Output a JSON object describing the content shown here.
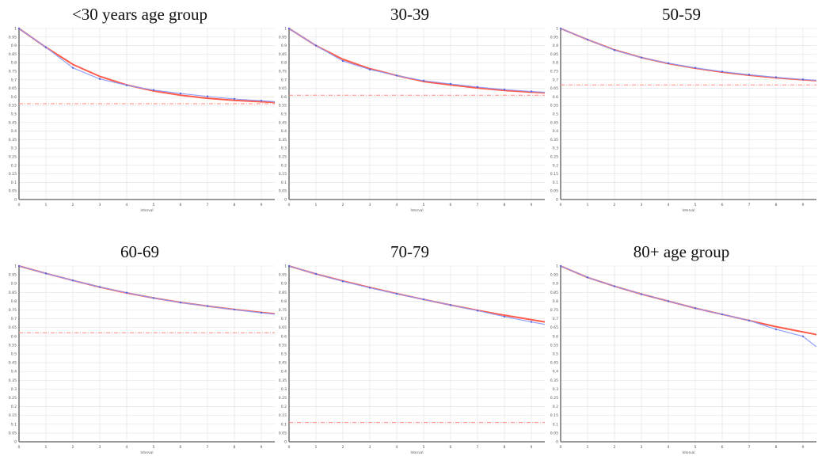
{
  "chart_data": [
    {
      "type": "line",
      "title": "<30 years age group",
      "xlabel": "Interval",
      "ylabel": "",
      "ylim": [
        0,
        1
      ],
      "xlim": [
        0,
        9.5
      ],
      "x": [
        0,
        1,
        2,
        3,
        4,
        5,
        6,
        7,
        8,
        9,
        9.5
      ],
      "x_ticks": [
        "0",
        "1",
        "2",
        "3",
        "4",
        "5",
        "6",
        "7",
        "8",
        "9"
      ],
      "y_ticks": [
        "0",
        "0.05",
        "0.1",
        "0.15",
        "0.2",
        "0.25",
        "0.3",
        "0.35",
        "0.4",
        "0.45",
        "0.5",
        "0.55",
        "0.6",
        "0.65",
        "0.7",
        "0.75",
        "0.8",
        "0.85",
        "0.9",
        "0.95",
        "1"
      ],
      "grid": true,
      "series": [
        {
          "color": "#ff5a4a",
          "values": [
            1.0,
            0.89,
            0.79,
            0.72,
            0.67,
            0.635,
            0.61,
            0.592,
            0.58,
            0.572,
            0.568
          ]
        },
        {
          "color": "#8a9cff",
          "values": [
            1.0,
            0.89,
            0.77,
            0.705,
            0.668,
            0.64,
            0.62,
            0.603,
            0.588,
            0.578,
            0.572
          ]
        }
      ],
      "reference_line": {
        "color": "#ff8a80",
        "value": 0.56
      }
    },
    {
      "type": "line",
      "title": "30-39",
      "xlabel": "Interval",
      "ylabel": "",
      "ylim": [
        0,
        1
      ],
      "xlim": [
        0,
        9.5
      ],
      "x": [
        0,
        1,
        2,
        3,
        4,
        5,
        6,
        7,
        8,
        9,
        9.5
      ],
      "x_ticks": [
        "0",
        "1",
        "2",
        "3",
        "4",
        "5",
        "6",
        "7",
        "8",
        "9"
      ],
      "y_ticks": [
        "0",
        "0.05",
        "0.1",
        "0.15",
        "0.2",
        "0.25",
        "0.3",
        "0.35",
        "0.4",
        "0.45",
        "0.5",
        "0.55",
        "0.6",
        "0.65",
        "0.7",
        "0.75",
        "0.8",
        "0.85",
        "0.9",
        "0.95",
        "1"
      ],
      "grid": true,
      "series": [
        {
          "color": "#ff5a4a",
          "values": [
            1.0,
            0.9,
            0.82,
            0.765,
            0.725,
            0.69,
            0.67,
            0.652,
            0.638,
            0.628,
            0.624
          ]
        },
        {
          "color": "#8a9cff",
          "values": [
            1.0,
            0.9,
            0.81,
            0.76,
            0.725,
            0.695,
            0.676,
            0.658,
            0.643,
            0.632,
            0.627
          ]
        }
      ],
      "reference_line": {
        "color": "#ff8a80",
        "value": 0.61
      }
    },
    {
      "type": "line",
      "title": "50-59",
      "xlabel": "Interval",
      "ylabel": "",
      "ylim": [
        0,
        1
      ],
      "xlim": [
        0,
        9.5
      ],
      "x": [
        0,
        1,
        2,
        3,
        4,
        5,
        6,
        7,
        8,
        9,
        9.5
      ],
      "x_ticks": [
        "0",
        "1",
        "2",
        "3",
        "4",
        "5",
        "6",
        "7",
        "8",
        "9"
      ],
      "y_ticks": [
        "0",
        "0.05",
        "0.1",
        "0.15",
        "0.2",
        "0.25",
        "0.3",
        "0.35",
        "0.4",
        "0.45",
        "0.5",
        "0.55",
        "0.6",
        "0.65",
        "0.7",
        "0.75",
        "0.8",
        "0.85",
        "0.9",
        "0.95",
        "1"
      ],
      "grid": true,
      "series": [
        {
          "color": "#ff5a4a",
          "values": [
            1.0,
            0.935,
            0.875,
            0.83,
            0.795,
            0.768,
            0.745,
            0.727,
            0.712,
            0.7,
            0.695
          ]
        },
        {
          "color": "#8a9cff",
          "values": [
            1.0,
            0.935,
            0.873,
            0.83,
            0.797,
            0.77,
            0.748,
            0.73,
            0.715,
            0.702,
            0.697
          ]
        }
      ],
      "reference_line": {
        "color": "#ff8a80",
        "value": 0.67
      }
    },
    {
      "type": "line",
      "title": "60-69",
      "xlabel": "Interval",
      "ylabel": "",
      "ylim": [
        0,
        1
      ],
      "xlim": [
        0,
        9.5
      ],
      "x": [
        0,
        1,
        2,
        3,
        4,
        5,
        6,
        7,
        8,
        9,
        9.5
      ],
      "x_ticks": [
        "0",
        "1",
        "2",
        "3",
        "4",
        "5",
        "6",
        "7",
        "8",
        "9"
      ],
      "y_ticks": [
        "0",
        "0.05",
        "0.1",
        "0.15",
        "0.2",
        "0.25",
        "0.3",
        "0.35",
        "0.4",
        "0.45",
        "0.5",
        "0.55",
        "0.6",
        "0.65",
        "0.7",
        "0.75",
        "0.8",
        "0.85",
        "0.9",
        "0.95",
        "1"
      ],
      "grid": true,
      "series": [
        {
          "color": "#ff5a4a",
          "values": [
            1.0,
            0.958,
            0.918,
            0.88,
            0.847,
            0.818,
            0.793,
            0.772,
            0.753,
            0.736,
            0.728
          ]
        },
        {
          "color": "#8a9cff",
          "values": [
            1.0,
            0.958,
            0.918,
            0.881,
            0.848,
            0.818,
            0.792,
            0.772,
            0.752,
            0.734,
            0.726
          ]
        }
      ],
      "reference_line": {
        "color": "#ff8a80",
        "value": 0.62
      }
    },
    {
      "type": "line",
      "title": "70-79",
      "xlabel": "Interval",
      "ylabel": "",
      "ylim": [
        0,
        1
      ],
      "xlim": [
        0,
        9.5
      ],
      "x": [
        0,
        1,
        2,
        3,
        4,
        5,
        6,
        7,
        8,
        9,
        9.5
      ],
      "x_ticks": [
        "0",
        "1",
        "2",
        "3",
        "4",
        "5",
        "6",
        "7",
        "8",
        "9"
      ],
      "y_ticks": [
        "0",
        "0.05",
        "0.1",
        "0.15",
        "0.2",
        "0.25",
        "0.3",
        "0.35",
        "0.4",
        "0.45",
        "0.5",
        "0.55",
        "0.6",
        "0.65",
        "0.7",
        "0.75",
        "0.8",
        "0.85",
        "0.9",
        "0.95",
        "1"
      ],
      "grid": true,
      "series": [
        {
          "color": "#ff5a4a",
          "values": [
            1.0,
            0.955,
            0.915,
            0.878,
            0.843,
            0.81,
            0.778,
            0.748,
            0.72,
            0.695,
            0.682
          ]
        },
        {
          "color": "#8a9cff",
          "values": [
            1.0,
            0.955,
            0.913,
            0.876,
            0.842,
            0.81,
            0.778,
            0.746,
            0.712,
            0.682,
            0.668
          ]
        }
      ],
      "reference_line": {
        "color": "#ff8a80",
        "value": 0.11
      }
    },
    {
      "type": "line",
      "title": "80+ age group",
      "xlabel": "Interval",
      "ylabel": "",
      "ylim": [
        0,
        1
      ],
      "xlim": [
        0,
        9.5
      ],
      "x": [
        0,
        1,
        2,
        3,
        4,
        5,
        6,
        7,
        8,
        9,
        9.5
      ],
      "x_ticks": [
        "0",
        "1",
        "2",
        "3",
        "4",
        "5",
        "6",
        "7",
        "8",
        "9"
      ],
      "y_ticks": [
        "0",
        "0.05",
        "0.1",
        "0.15",
        "0.2",
        "0.25",
        "0.3",
        "0.35",
        "0.4",
        "0.45",
        "0.5",
        "0.55",
        "0.6",
        "0.65",
        "0.7",
        "0.75",
        "0.8",
        "0.85",
        "0.9",
        "0.95",
        "1"
      ],
      "grid": true,
      "series": [
        {
          "color": "#ff5a4a",
          "values": [
            1.0,
            0.935,
            0.885,
            0.84,
            0.8,
            0.76,
            0.725,
            0.69,
            0.655,
            0.625,
            0.61
          ]
        },
        {
          "color": "#8a9cff",
          "values": [
            1.0,
            0.935,
            0.885,
            0.84,
            0.8,
            0.76,
            0.725,
            0.69,
            0.64,
            0.6,
            0.54
          ]
        }
      ],
      "reference_line": null
    }
  ]
}
